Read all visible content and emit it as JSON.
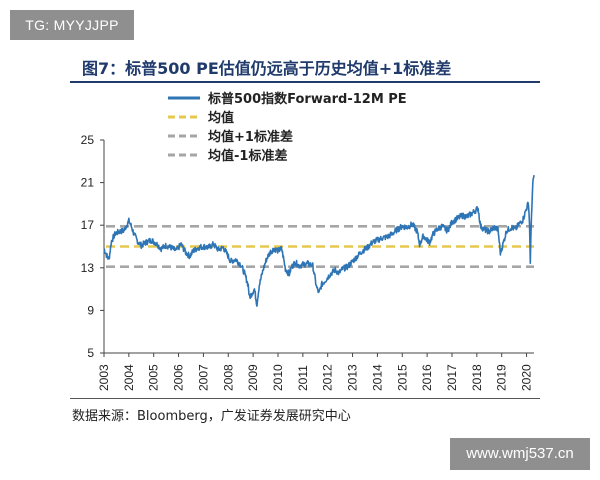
{
  "watermark_top": "TG: MYYJJPP",
  "watermark_bottom": "www.wmj537.cn",
  "figure_title": "图7：标普500 PE估值仍远高于历史均值+1标准差",
  "source": "数据来源：Bloomberg，广发证券发展研究中心",
  "colors": {
    "series": "#2e75b6",
    "mean": "#e6c84e",
    "band": "#a6a6a6",
    "title": "#1f3a6b"
  },
  "chart_data": {
    "type": "line",
    "title": "图7：标普500 PE估值仍远高于历史均值+1标准差",
    "xlabel": "",
    "ylabel": "",
    "ylim": [
      5,
      25
    ],
    "yticks": [
      5,
      9,
      13,
      17,
      21,
      25
    ],
    "xticks": [
      "2003",
      "2004",
      "2005",
      "2006",
      "2007",
      "2008",
      "2009",
      "2010",
      "2011",
      "2012",
      "2013",
      "2014",
      "2015",
      "2016",
      "2017",
      "2018",
      "2019",
      "2020"
    ],
    "xlim": [
      2003,
      2020.3
    ],
    "legend": [
      "标普500指数Forward-12M PE",
      "均值",
      "均值+1标准差",
      "均值-1标准差"
    ],
    "legend_position": "top-center",
    "series": [
      {
        "name": "标普500指数Forward-12M PE",
        "style": "solid",
        "x": [
          2003.0,
          2003.1,
          2003.2,
          2003.3,
          2003.45,
          2003.6,
          2003.8,
          2004.0,
          2004.1,
          2004.2,
          2004.35,
          2004.5,
          2004.7,
          2004.9,
          2005.1,
          2005.3,
          2005.5,
          2005.7,
          2005.9,
          2006.1,
          2006.3,
          2006.45,
          2006.6,
          2006.8,
          2007.0,
          2007.2,
          2007.4,
          2007.6,
          2007.8,
          2007.95,
          2008.1,
          2008.3,
          2008.5,
          2008.65,
          2008.8,
          2008.85,
          2008.95,
          2009.05,
          2009.15,
          2009.25,
          2009.4,
          2009.55,
          2009.7,
          2009.85,
          2010.0,
          2010.15,
          2010.3,
          2010.45,
          2010.55,
          2010.7,
          2010.85,
          2011.0,
          2011.2,
          2011.4,
          2011.55,
          2011.65,
          2011.75,
          2011.9,
          2012.1,
          2012.3,
          2012.45,
          2012.6,
          2012.8,
          2013.0,
          2013.2,
          2013.4,
          2013.6,
          2013.8,
          2014.0,
          2014.2,
          2014.4,
          2014.6,
          2014.8,
          2015.0,
          2015.2,
          2015.4,
          2015.6,
          2015.7,
          2015.85,
          2016.0,
          2016.1,
          2016.25,
          2016.4,
          2016.6,
          2016.8,
          2016.9,
          2017.0,
          2017.2,
          2017.4,
          2017.6,
          2017.8,
          2017.95,
          2018.05,
          2018.15,
          2018.3,
          2018.5,
          2018.7,
          2018.85,
          2018.95,
          2019.05,
          2019.2,
          2019.4,
          2019.55,
          2019.7,
          2019.85,
          2020.0,
          2020.08,
          2020.12,
          2020.15,
          2020.2,
          2020.25,
          2020.3
        ],
        "values": [
          14.8,
          14.2,
          13.8,
          15.5,
          16.2,
          16.4,
          16.5,
          17.4,
          16.9,
          16.2,
          15.5,
          15.1,
          15.4,
          15.6,
          15.3,
          14.8,
          15.1,
          14.9,
          14.6,
          15.2,
          14.4,
          14.1,
          14.6,
          14.9,
          15.0,
          14.9,
          15.2,
          14.7,
          14.9,
          14.3,
          13.6,
          13.8,
          13.3,
          12.5,
          11.4,
          10.2,
          10.6,
          11.0,
          9.6,
          11.4,
          12.8,
          13.9,
          14.5,
          14.8,
          14.6,
          14.8,
          12.9,
          12.4,
          13.1,
          13.5,
          13.2,
          13.3,
          13.4,
          13.2,
          11.2,
          10.6,
          11.4,
          11.8,
          12.4,
          12.8,
          12.5,
          12.9,
          13.1,
          13.6,
          14.1,
          14.6,
          14.9,
          15.4,
          15.6,
          15.8,
          15.9,
          16.2,
          16.6,
          16.9,
          16.8,
          17.1,
          16.4,
          15.2,
          16.0,
          15.6,
          15.4,
          16.2,
          16.6,
          16.9,
          16.5,
          16.8,
          17.3,
          17.6,
          17.9,
          17.8,
          18.1,
          18.4,
          18.6,
          16.9,
          16.6,
          16.4,
          16.8,
          16.6,
          14.4,
          15.2,
          16.5,
          16.8,
          16.6,
          17.1,
          17.5,
          18.6,
          19.1,
          17.2,
          13.6,
          17.9,
          20.8,
          21.7
        ]
      },
      {
        "name": "均值",
        "style": "dashed",
        "value": 15.0
      },
      {
        "name": "均值+1标准差",
        "style": "dashed",
        "value": 16.9
      },
      {
        "name": "均值-1标准差",
        "style": "dashed",
        "value": 13.1
      }
    ]
  }
}
